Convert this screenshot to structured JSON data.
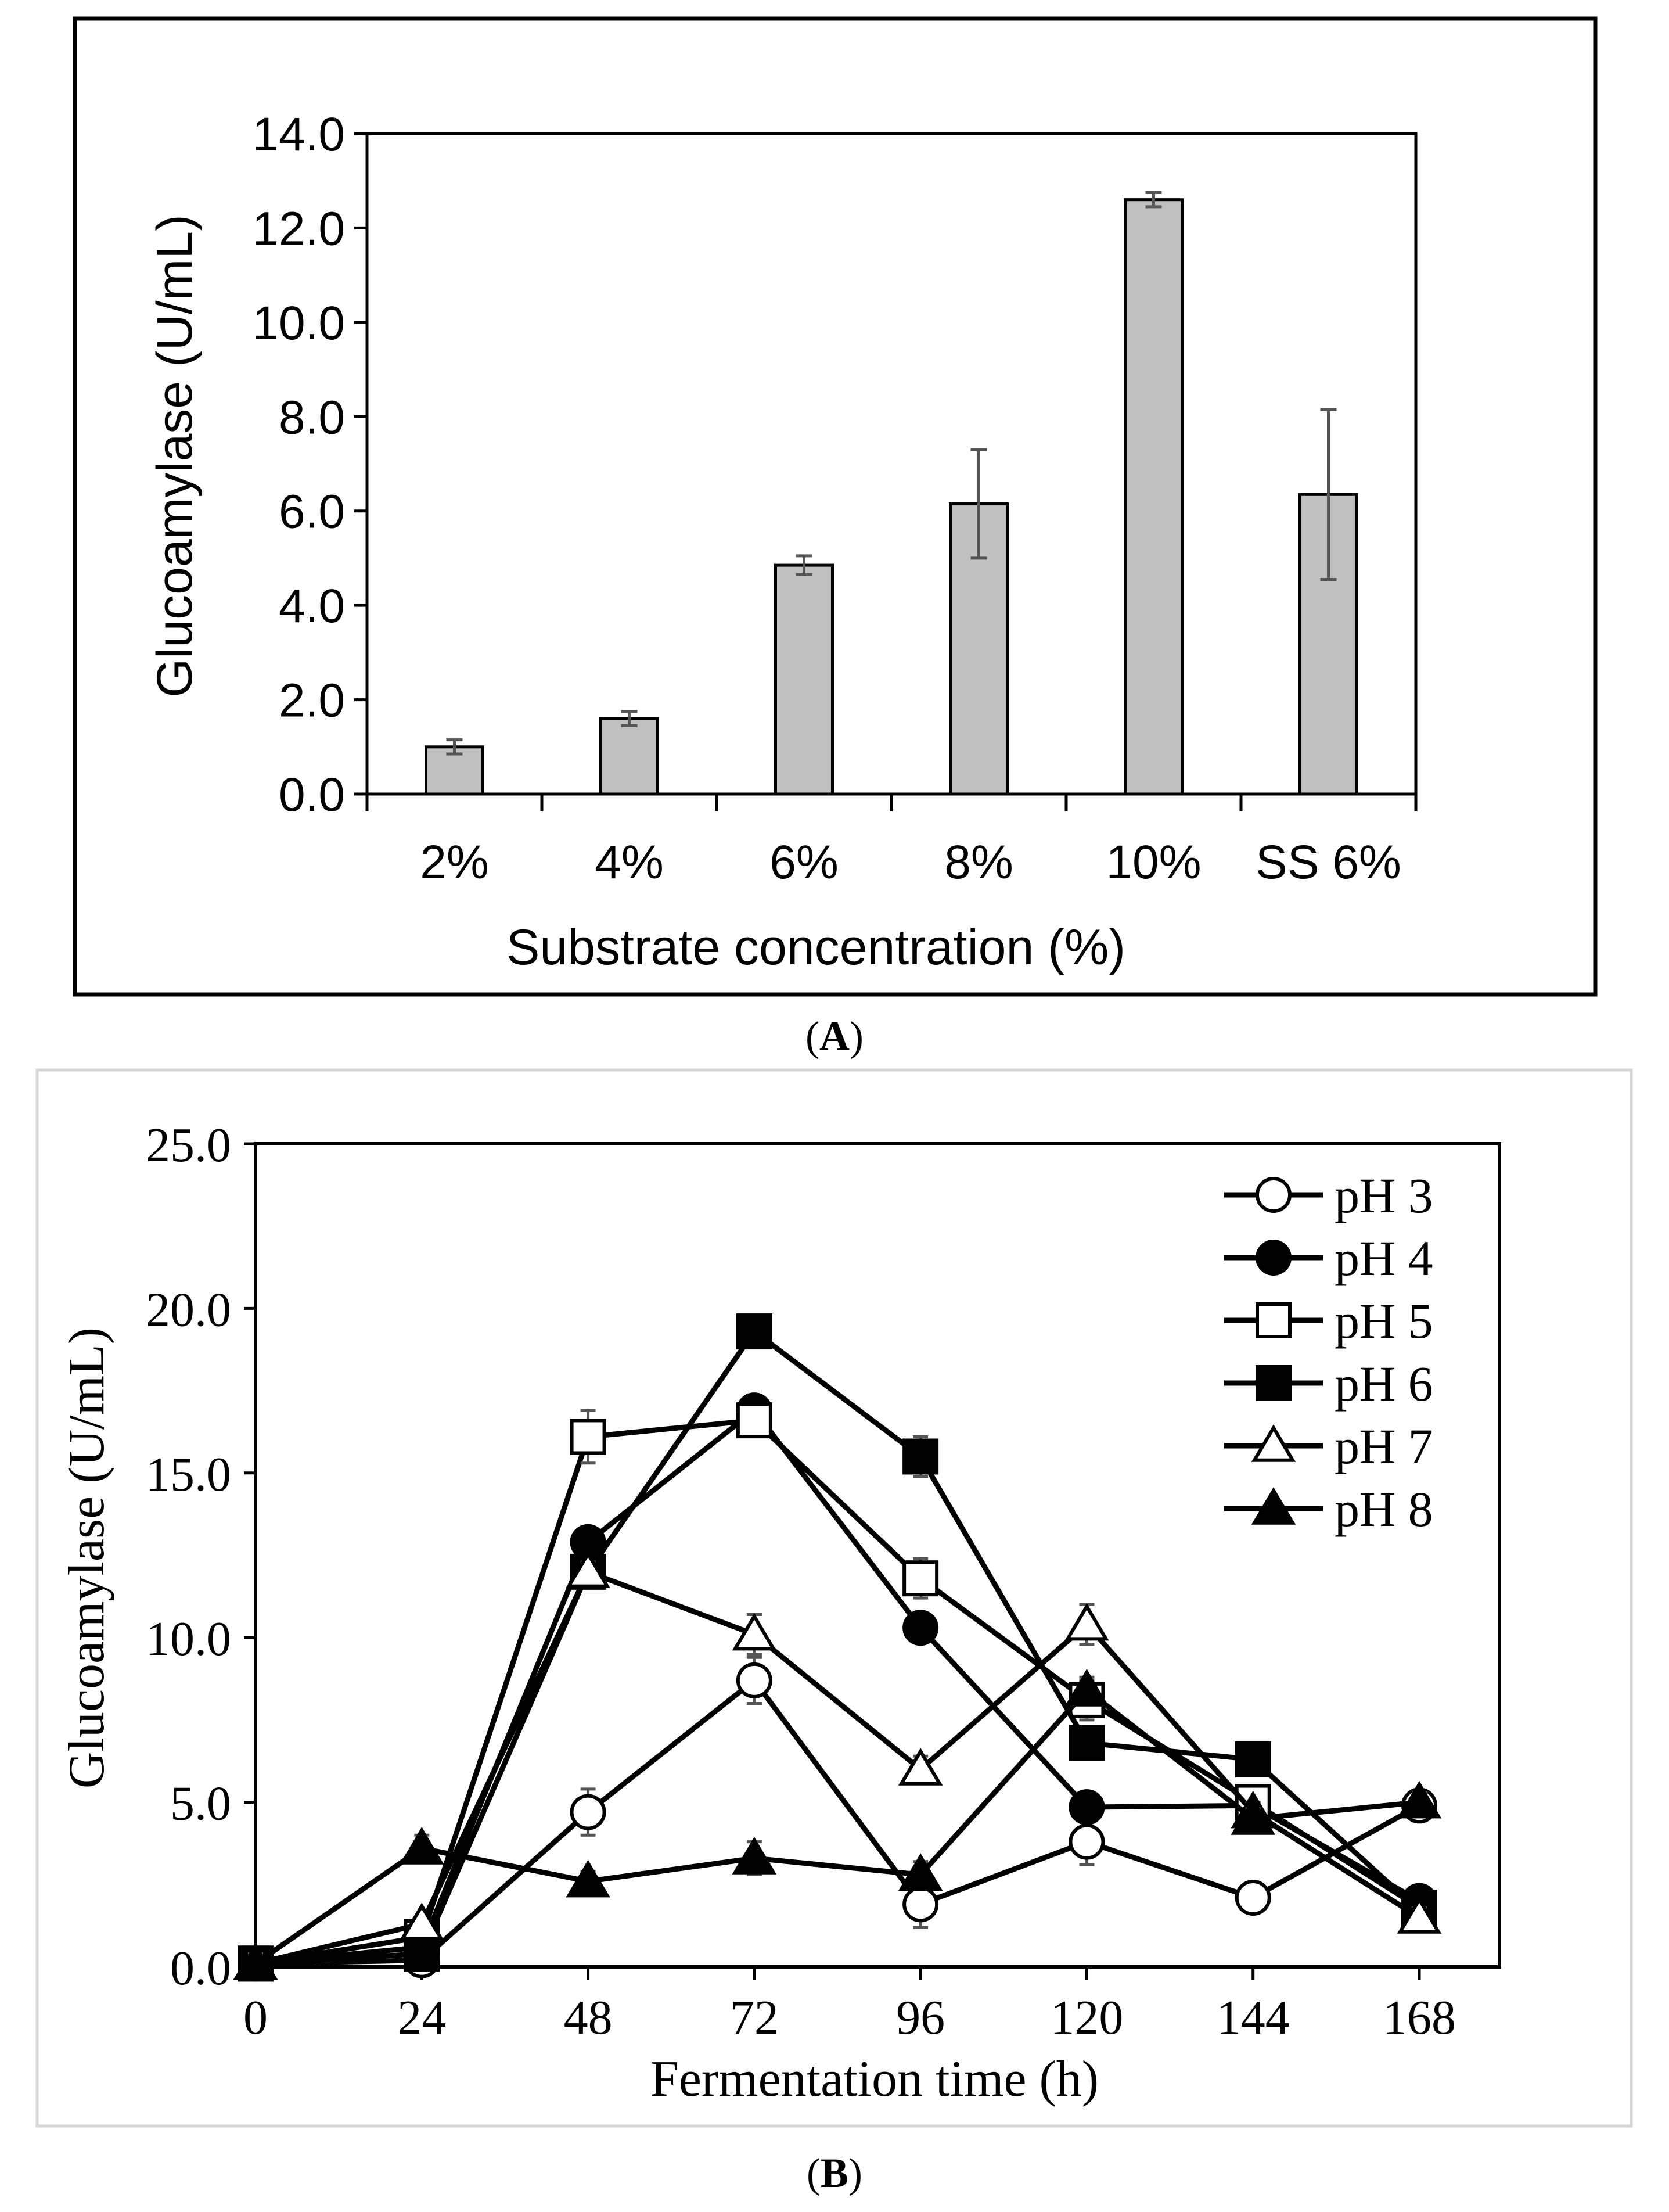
{
  "colors": {
    "bar_fill": "#c0c0c0",
    "error_bar": "#555555",
    "line": "#000000",
    "panel_b_frame": "#d6d6d6"
  },
  "panel_a": {
    "caption": "A",
    "chart_data": {
      "type": "bar",
      "title": "",
      "xlabel": "Substrate concentration (%)",
      "ylabel": "Glucoamylase (U/mL)",
      "categories": [
        "2%",
        "4%",
        "6%",
        "8%",
        "10%",
        "SS 6%"
      ],
      "values": [
        1.0,
        1.6,
        4.85,
        6.15,
        12.6,
        6.35
      ],
      "errors": [
        0.15,
        0.15,
        0.2,
        1.15,
        0.15,
        1.8
      ],
      "ylim": [
        0,
        14
      ],
      "yticks": [
        "0.0",
        "2.0",
        "4.0",
        "6.0",
        "8.0",
        "10.0",
        "12.0",
        "14.0"
      ],
      "grid": false
    }
  },
  "panel_b": {
    "caption": "B",
    "chart_data": {
      "type": "line",
      "title": "",
      "xlabel": "Fermentation time (h)",
      "ylabel": "Glucoamylase (U/mL)",
      "x": [
        0,
        24,
        48,
        72,
        96,
        120,
        144,
        168
      ],
      "xticks": [
        "0",
        "24",
        "48",
        "72",
        "96",
        "120",
        "144",
        "168"
      ],
      "yticks": [
        "0.0",
        "5.0",
        "10.0",
        "15.0",
        "20.0",
        "25.0"
      ],
      "ylim": [
        0,
        25
      ],
      "xlim": [
        0,
        180
      ],
      "grid": false,
      "legend_position": "top-right",
      "series": [
        {
          "name": "pH 3",
          "marker": "circle-open",
          "values": [
            0.1,
            0.2,
            4.7,
            8.7,
            1.9,
            3.8,
            2.1,
            4.9
          ],
          "errors": [
            0.3,
            0.2,
            0.7,
            0.7,
            0.7,
            0.7,
            0.2,
            0.4
          ]
        },
        {
          "name": "pH 4",
          "marker": "circle-filled",
          "values": [
            0.1,
            0.6,
            12.9,
            16.9,
            10.3,
            4.85,
            4.9,
            2.0
          ],
          "errors": [
            0.3,
            0.2,
            0.3,
            0.3,
            0.3,
            0.3,
            0.2,
            0.3
          ]
        },
        {
          "name": "pH 5",
          "marker": "square-open",
          "values": [
            0.1,
            0.9,
            16.1,
            16.6,
            11.8,
            8.1,
            5.0,
            1.8
          ],
          "errors": [
            0.3,
            0.2,
            0.8,
            0.4,
            0.6,
            0.6,
            0.3,
            0.3
          ]
        },
        {
          "name": "pH 6",
          "marker": "square-filled",
          "values": [
            0.1,
            0.4,
            12.0,
            19.3,
            15.5,
            6.8,
            6.3,
            1.7
          ],
          "errors": [
            0.3,
            0.2,
            0.3,
            0.3,
            0.6,
            0.3,
            0.2,
            0.3
          ]
        },
        {
          "name": "pH 7",
          "marker": "triangle-open",
          "values": [
            0.1,
            1.3,
            12.0,
            10.1,
            6.0,
            10.4,
            4.7,
            1.5
          ],
          "errors": [
            0.3,
            0.2,
            0.3,
            0.6,
            0.4,
            0.6,
            0.3,
            0.3
          ]
        },
        {
          "name": "pH 8",
          "marker": "triangle-filled",
          "values": [
            0.1,
            3.6,
            2.6,
            3.3,
            2.8,
            8.4,
            4.5,
            5.0
          ],
          "errors": [
            0.3,
            0.4,
            0.3,
            0.5,
            0.4,
            0.4,
            0.3,
            0.3
          ]
        }
      ]
    }
  }
}
